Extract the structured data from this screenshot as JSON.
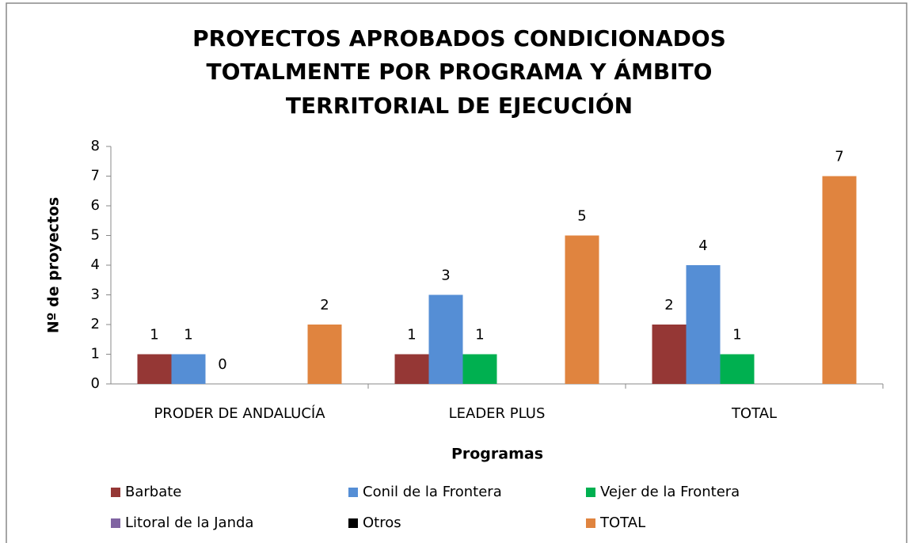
{
  "chart_data": {
    "type": "bar",
    "title": [
      "PROYECTOS APROBADOS  CONDICIONADOS",
      "TOTALMENTE POR PROGRAMA Y ÁMBITO",
      "TERRITORIAL DE EJECUCIÓN"
    ],
    "x_label": "Programas",
    "y_label": "Nº de proyectos",
    "categories": [
      "PRODER DE ANDALUCÍA",
      "LEADER PLUS",
      "TOTAL"
    ],
    "series": [
      {
        "name": "Barbate",
        "color": "#953735",
        "values": [
          1,
          1,
          2
        ]
      },
      {
        "name": "Conil de la Frontera",
        "color": "#558ed5",
        "values": [
          1,
          3,
          4
        ]
      },
      {
        "name": "Vejer de la Frontera",
        "color": "#00b050",
        "values": [
          0,
          1,
          1
        ]
      },
      {
        "name": "Litoral de la Janda",
        "color": "#8064a2",
        "values": [
          null,
          null,
          null
        ]
      },
      {
        "name": "Otros",
        "color": "#000000",
        "values": [
          null,
          null,
          null
        ]
      },
      {
        "name": "TOTAL",
        "color": "#e0843f",
        "values": [
          2,
          5,
          7
        ]
      }
    ],
    "ylim": [
      0,
      8
    ],
    "yticks": [
      0,
      1,
      2,
      3,
      4,
      5,
      6,
      7,
      8
    ],
    "legend": "bottom"
  }
}
